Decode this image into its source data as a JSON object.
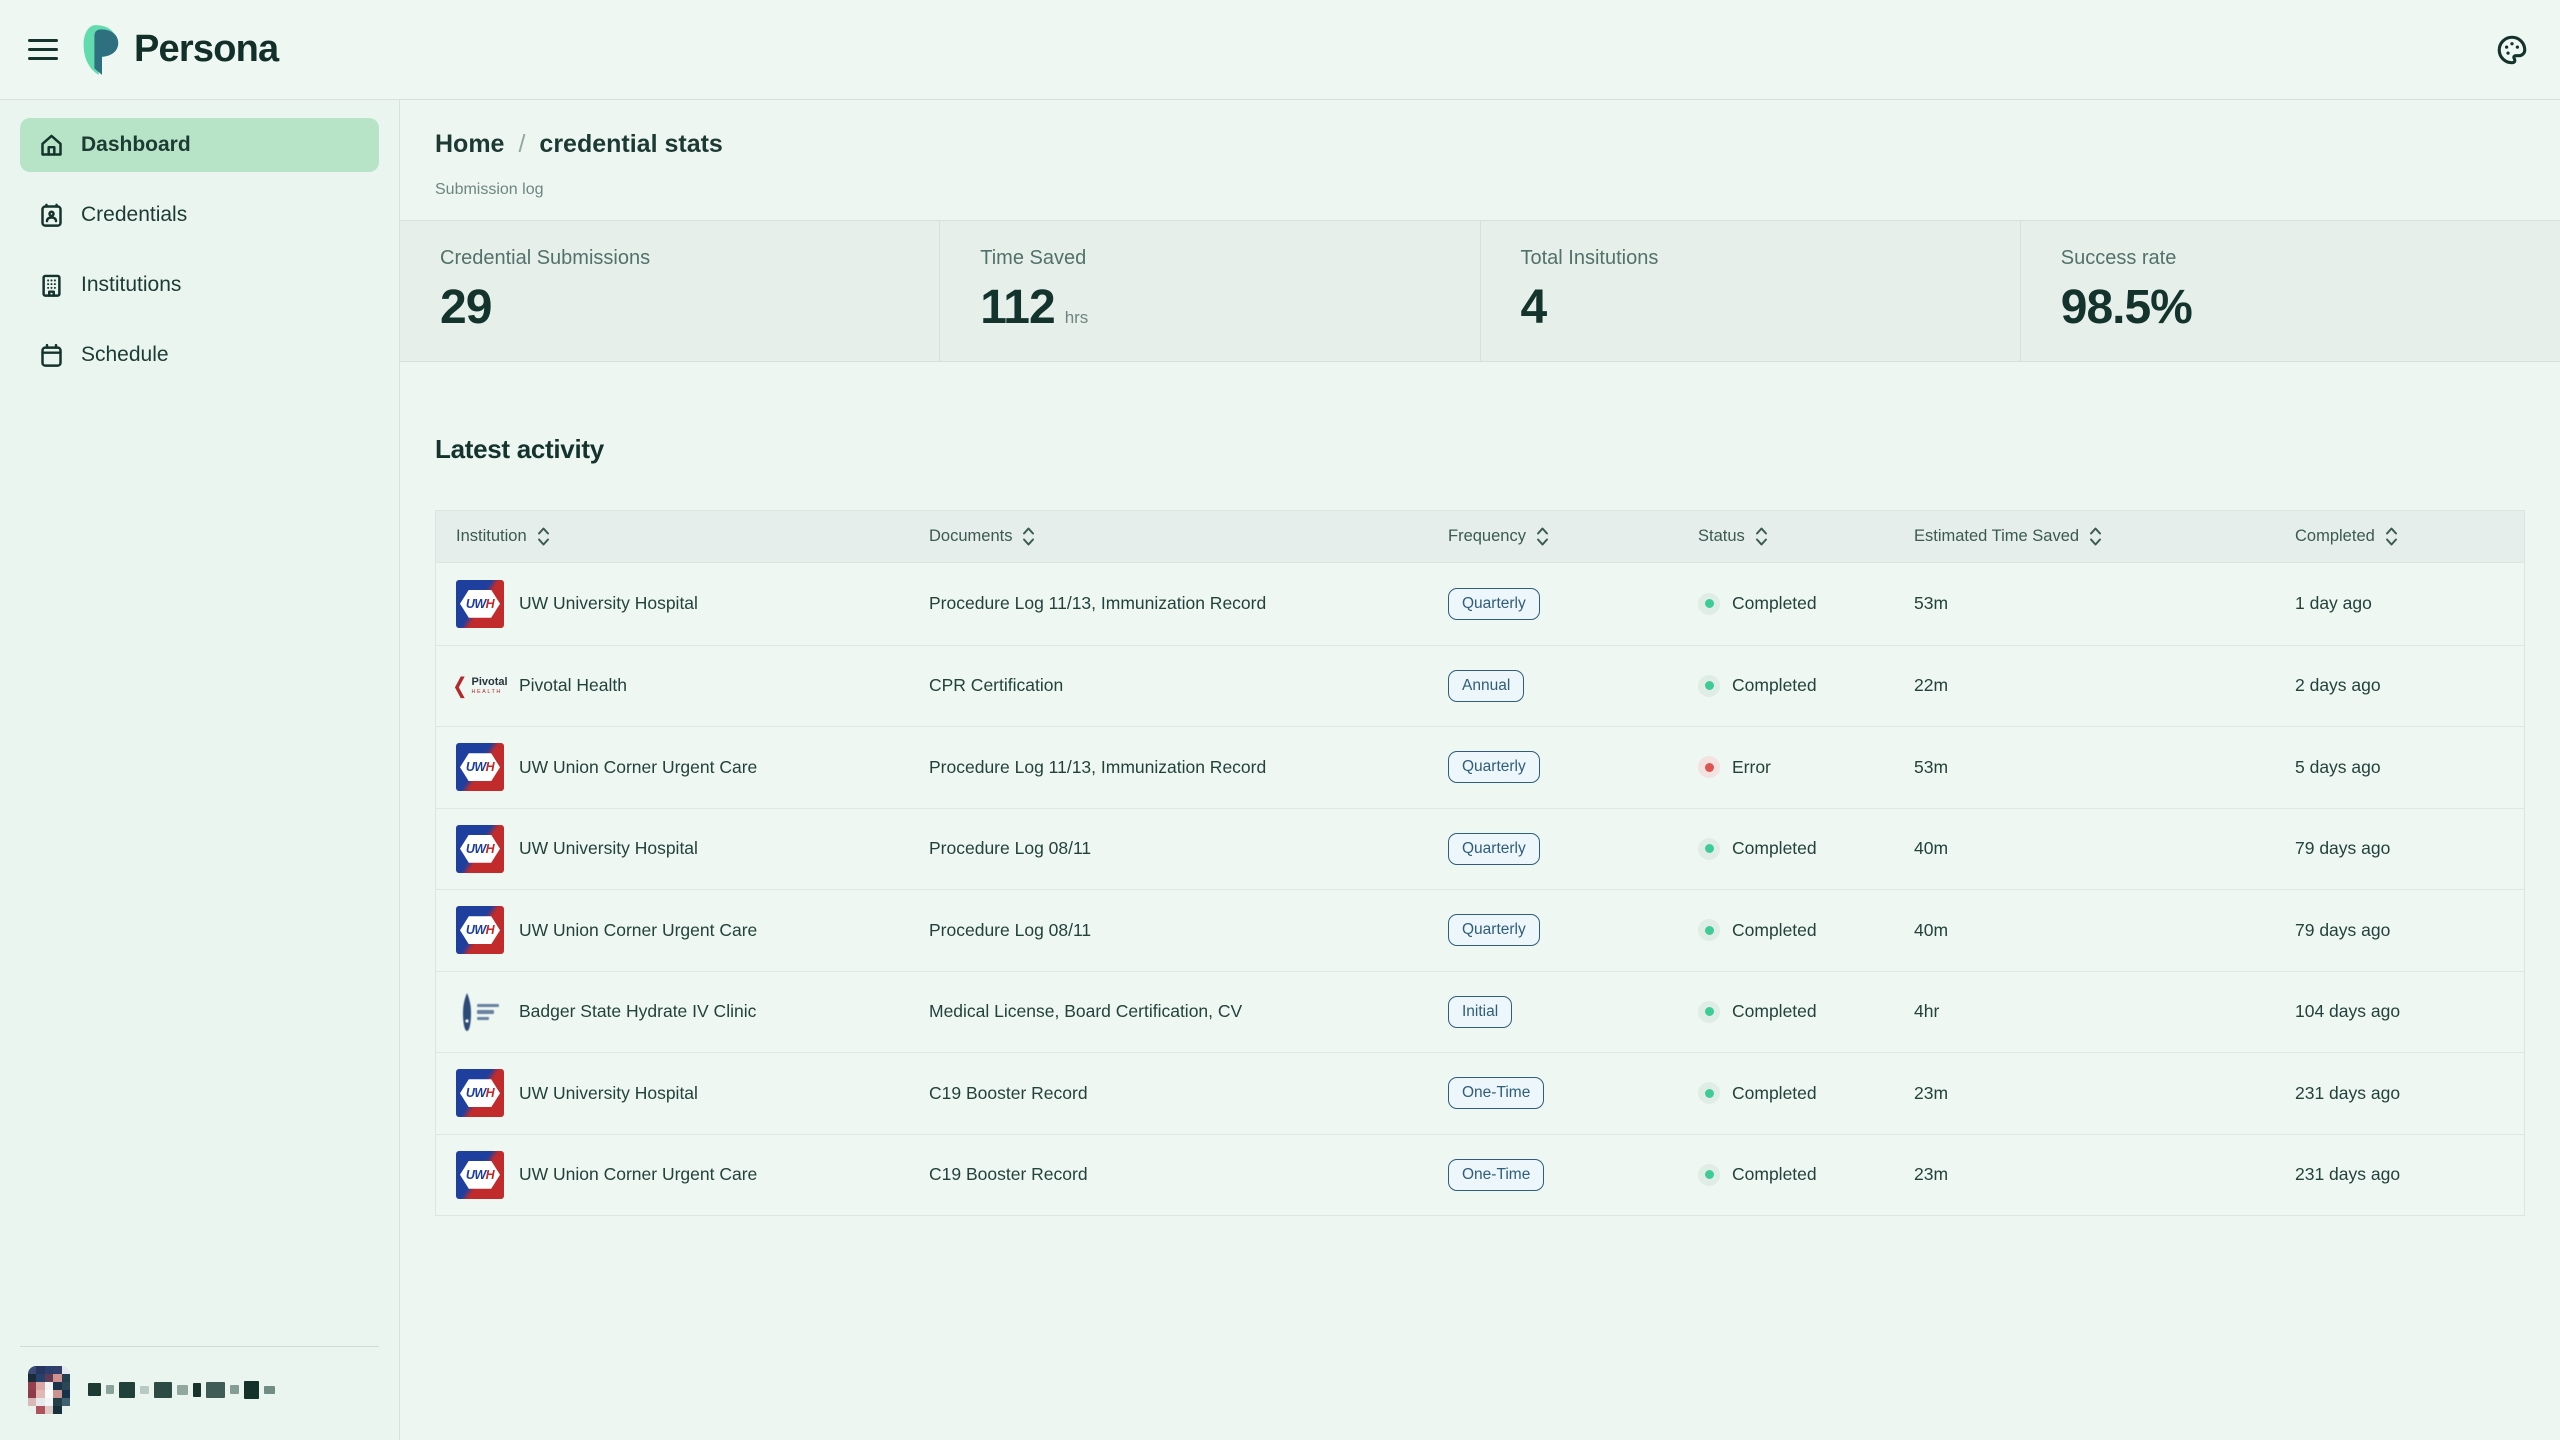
{
  "app": {
    "brand": "Persona"
  },
  "topbar": {
    "theme_icon": "palette-icon"
  },
  "sidebar": {
    "items": [
      {
        "label": "Dashboard",
        "icon": "home-icon",
        "active": true
      },
      {
        "label": "Credentials",
        "icon": "id-card-icon",
        "active": false
      },
      {
        "label": "Institutions",
        "icon": "building-icon",
        "active": false
      },
      {
        "label": "Schedule",
        "icon": "calendar-icon",
        "active": false
      }
    ],
    "user": {
      "redacted": true
    }
  },
  "breadcrumb": {
    "home": "Home",
    "separator": "/",
    "current": "credential stats",
    "subtitle": "Submission log"
  },
  "stats": [
    {
      "label": "Credential Submissions",
      "value": "29",
      "unit": ""
    },
    {
      "label": "Time Saved",
      "value": "112",
      "unit": "hrs"
    },
    {
      "label": "Total Insitutions",
      "value": "4",
      "unit": ""
    },
    {
      "label": "Success rate",
      "value": "98.5%",
      "unit": ""
    }
  ],
  "activity": {
    "title": "Latest activity",
    "columns": [
      "Institution",
      "Documents",
      "Frequency",
      "Status",
      "Estimated Time Saved",
      "Completed"
    ],
    "rows": [
      {
        "institution": "UW University Hospital",
        "logo": "uwh",
        "documents": "Procedure Log 11/13, Immunization Record",
        "frequency": "Quarterly",
        "status": "Completed",
        "status_type": "success",
        "time_saved": "53m",
        "completed": "1 day ago"
      },
      {
        "institution": "Pivotal Health",
        "logo": "pivotal",
        "documents": "CPR Certification",
        "frequency": "Annual",
        "status": "Completed",
        "status_type": "success",
        "time_saved": "22m",
        "completed": "2 days ago"
      },
      {
        "institution": "UW Union Corner Urgent Care",
        "logo": "uwh",
        "documents": "Procedure Log 11/13, Immunization Record",
        "frequency": "Quarterly",
        "status": "Error",
        "status_type": "error",
        "time_saved": "53m",
        "completed": "5 days ago"
      },
      {
        "institution": "UW University Hospital",
        "logo": "uwh",
        "documents": "Procedure Log 08/11",
        "frequency": "Quarterly",
        "status": "Completed",
        "status_type": "success",
        "time_saved": "40m",
        "completed": "79 days ago"
      },
      {
        "institution": "UW Union Corner Urgent Care",
        "logo": "uwh",
        "documents": "Procedure Log 08/11",
        "frequency": "Quarterly",
        "status": "Completed",
        "status_type": "success",
        "time_saved": "40m",
        "completed": "79 days ago"
      },
      {
        "institution": "Badger State Hydrate IV Clinic",
        "logo": "badger",
        "documents": "Medical License, Board Certification, CV",
        "frequency": "Initial",
        "status": "Completed",
        "status_type": "success",
        "time_saved": "4hr",
        "completed": "104 days ago"
      },
      {
        "institution": "UW University Hospital",
        "logo": "uwh",
        "documents": "C19 Booster Record",
        "frequency": "One-Time",
        "status": "Completed",
        "status_type": "success",
        "time_saved": "23m",
        "completed": "231 days ago"
      },
      {
        "institution": "UW Union Corner Urgent Care",
        "logo": "uwh",
        "documents": "C19 Booster Record",
        "frequency": "One-Time",
        "status": "Completed",
        "status_type": "success",
        "time_saved": "23m",
        "completed": "231 days ago"
      }
    ],
    "logo_texts": {
      "uwh_u": "UW",
      "uwh_h": "H",
      "pivotal_name": "Pivotal",
      "pivotal_sub": "HEALTH"
    }
  },
  "colors": {
    "accent_green": "#b7e4c7",
    "success_dot": "#3ecb97",
    "error_dot": "#dd5551",
    "badge_blue": "#2f5e79",
    "dark_text": "#14332c",
    "band_bg": "#e6efe9"
  }
}
